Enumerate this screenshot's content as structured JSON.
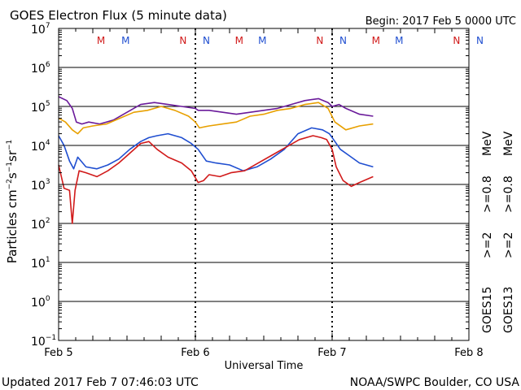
{
  "header": {
    "title": "GOES Electron Flux (5 minute data)",
    "begin": "Begin: 2017 Feb 5 0000 UTC"
  },
  "footer": {
    "updated": "Updated 2017 Feb  7 07:46:03 UTC",
    "credit": "NOAA/SWPC Boulder, CO USA"
  },
  "axes": {
    "ylabel_main": "Particles cm",
    "ylabel_exp1": "−2",
    "ylabel_mid1": "s",
    "ylabel_exp2": "−1",
    "ylabel_mid2": "sr",
    "ylabel_exp3": "−1",
    "xlabel": "Universal Time",
    "y_exponents": [
      "7",
      "6",
      "5",
      "4",
      "3",
      "2",
      "1",
      "0",
      "−1"
    ],
    "x_ticks": [
      "Feb 5",
      "Feb 6",
      "Feb 7",
      "Feb 8"
    ]
  },
  "markers": [
    {
      "text": "M",
      "day": 0.31,
      "color": "#d11a1a"
    },
    {
      "text": "M",
      "day": 0.49,
      "color": "#1f4ed0"
    },
    {
      "text": "N",
      "day": 0.91,
      "color": "#d11a1a"
    },
    {
      "text": "N",
      "day": 1.08,
      "color": "#1f4ed0"
    },
    {
      "text": "M",
      "day": 1.32,
      "color": "#d11a1a"
    },
    {
      "text": "M",
      "day": 1.49,
      "color": "#1f4ed0"
    },
    {
      "text": "N",
      "day": 1.91,
      "color": "#d11a1a"
    },
    {
      "text": "N",
      "day": 2.08,
      "color": "#1f4ed0"
    },
    {
      "text": "M",
      "day": 2.32,
      "color": "#d11a1a"
    },
    {
      "text": "M",
      "day": 2.49,
      "color": "#1f4ed0"
    },
    {
      "text": "N",
      "day": 2.91,
      "color": "#d11a1a"
    },
    {
      "text": "N",
      "day": 3.08,
      "color": "#1f4ed0"
    }
  ],
  "legend": {
    "goes15": "GOES15",
    "goes13": "GOES13",
    "g15_blue": ">=2",
    "g15_purple": ">=0.8",
    "g13_red": ">=2",
    "g13_orange": ">=0.8",
    "mev1": "MeV",
    "mev2": "MeV"
  },
  "colors": {
    "purple": "#6a1a9a",
    "orange": "#e8a000",
    "blue": "#1f4ed0",
    "red": "#d11a1a"
  },
  "chart_data": {
    "type": "line",
    "title": "GOES Electron Flux (5 minute data)",
    "xlabel": "Universal Time",
    "ylabel": "Particles cm^-2 s^-1 sr^-1",
    "x_unit": "days since 2017 Feb 5 0000 UTC",
    "xlim": [
      0,
      3
    ],
    "ylim_log10": [
      -1,
      7
    ],
    "yscale": "log",
    "threshold_log10": 3,
    "series": [
      {
        "name": "GOES15 >=0.8 MeV",
        "color": "#6a1a9a",
        "x": [
          0.0,
          0.06,
          0.1,
          0.13,
          0.17,
          0.22,
          0.3,
          0.4,
          0.5,
          0.6,
          0.7,
          0.8,
          0.9,
          1.0,
          1.02,
          1.1,
          1.2,
          1.3,
          1.4,
          1.5,
          1.6,
          1.7,
          1.8,
          1.9,
          1.97,
          2.0,
          2.05,
          2.1,
          2.2,
          2.3
        ],
        "y": [
          5.25,
          5.15,
          4.95,
          4.6,
          4.55,
          4.6,
          4.55,
          4.65,
          4.85,
          5.05,
          5.1,
          5.05,
          5.0,
          4.95,
          4.9,
          4.9,
          4.85,
          4.8,
          4.85,
          4.9,
          4.95,
          5.05,
          5.15,
          5.2,
          5.1,
          5.0,
          5.05,
          4.95,
          4.8,
          4.75
        ]
      },
      {
        "name": "GOES13 >=0.8 MeV",
        "color": "#e8a000",
        "x": [
          0.0,
          0.05,
          0.1,
          0.14,
          0.18,
          0.25,
          0.35,
          0.45,
          0.55,
          0.65,
          0.75,
          0.85,
          0.95,
          1.0,
          1.03,
          1.1,
          1.2,
          1.3,
          1.4,
          1.5,
          1.6,
          1.7,
          1.8,
          1.9,
          1.97,
          2.02,
          2.1,
          2.2,
          2.3
        ],
        "y": [
          4.7,
          4.6,
          4.4,
          4.3,
          4.45,
          4.5,
          4.55,
          4.7,
          4.85,
          4.9,
          5.0,
          4.9,
          4.75,
          4.6,
          4.45,
          4.5,
          4.55,
          4.6,
          4.75,
          4.8,
          4.9,
          4.95,
          5.05,
          5.1,
          4.95,
          4.6,
          4.4,
          4.5,
          4.55
        ]
      },
      {
        "name": "GOES15 >=2 MeV",
        "color": "#1f4ed0",
        "x": [
          0.0,
          0.04,
          0.08,
          0.11,
          0.14,
          0.2,
          0.28,
          0.36,
          0.44,
          0.52,
          0.6,
          0.66,
          0.72,
          0.8,
          0.9,
          0.97,
          1.02,
          1.08,
          1.15,
          1.25,
          1.35,
          1.45,
          1.55,
          1.65,
          1.75,
          1.85,
          1.93,
          1.98,
          2.02,
          2.06,
          2.12,
          2.2,
          2.3
        ],
        "y": [
          4.25,
          4.0,
          3.6,
          3.4,
          3.7,
          3.45,
          3.4,
          3.5,
          3.65,
          3.9,
          4.1,
          4.2,
          4.25,
          4.3,
          4.2,
          4.05,
          3.9,
          3.6,
          3.55,
          3.5,
          3.35,
          3.45,
          3.65,
          3.9,
          4.3,
          4.45,
          4.4,
          4.3,
          4.1,
          3.9,
          3.75,
          3.55,
          3.45
        ]
      },
      {
        "name": "GOES13 >=2 MeV",
        "color": "#d11a1a",
        "x": [
          0.0,
          0.04,
          0.08,
          0.1,
          0.12,
          0.15,
          0.2,
          0.28,
          0.36,
          0.44,
          0.52,
          0.6,
          0.66,
          0.72,
          0.8,
          0.9,
          0.97,
          1.02,
          1.06,
          1.1,
          1.18,
          1.26,
          1.36,
          1.46,
          1.56,
          1.66,
          1.76,
          1.86,
          1.92,
          1.96,
          2.0,
          2.03,
          2.08,
          2.14,
          2.2,
          2.3
        ],
        "y": [
          3.5,
          2.9,
          2.85,
          2.0,
          2.85,
          3.35,
          3.3,
          3.2,
          3.35,
          3.55,
          3.8,
          4.05,
          4.1,
          3.9,
          3.7,
          3.55,
          3.35,
          3.05,
          3.1,
          3.25,
          3.2,
          3.3,
          3.35,
          3.55,
          3.75,
          3.95,
          4.15,
          4.25,
          4.2,
          4.15,
          3.9,
          3.45,
          3.1,
          2.95,
          3.05,
          3.2
        ]
      }
    ]
  }
}
